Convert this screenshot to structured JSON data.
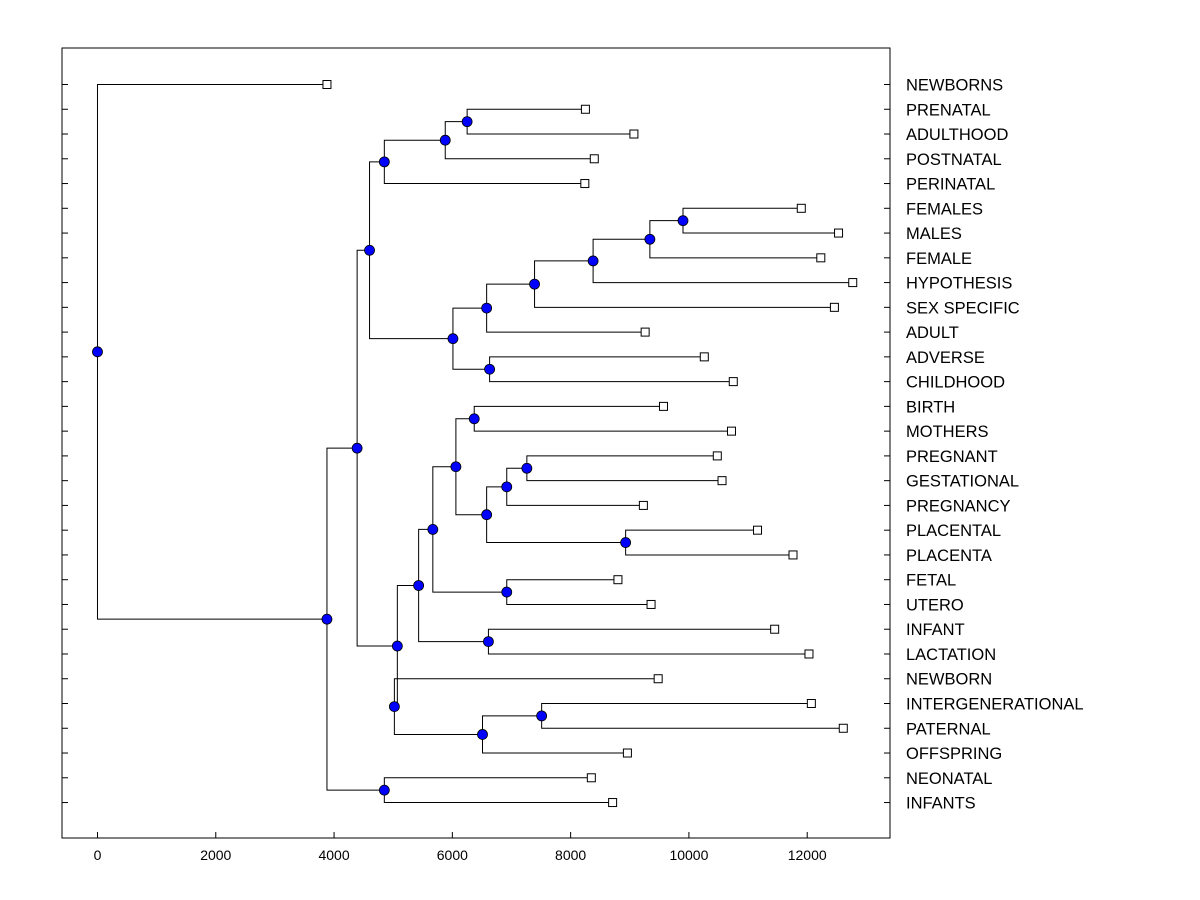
{
  "chart_data": {
    "type": "dendrogram",
    "title": "",
    "xlabel": "",
    "ylabel": "",
    "xlim": [
      -600,
      13400
    ],
    "xticks": [
      0,
      2000,
      4000,
      6000,
      8000,
      10000,
      12000
    ],
    "xtick_labels": [
      "0",
      "2000",
      "4000",
      "6000",
      "8000",
      "10000",
      "12000"
    ],
    "leaves": [
      {
        "id": "NEWBORNS",
        "label": "NEWBORNS",
        "x": 3880
      },
      {
        "id": "PRENATAL",
        "label": "PRENATAL",
        "x": 8250
      },
      {
        "id": "ADULTHOOD",
        "label": "ADULTHOOD",
        "x": 9070
      },
      {
        "id": "POSTNATAL",
        "label": "POSTNATAL",
        "x": 8400
      },
      {
        "id": "PERINATAL",
        "label": "PERINATAL",
        "x": 8240
      },
      {
        "id": "FEMALES",
        "label": "FEMALES",
        "x": 11900
      },
      {
        "id": "MALES",
        "label": "MALES",
        "x": 12530
      },
      {
        "id": "FEMALE",
        "label": "FEMALE",
        "x": 12230
      },
      {
        "id": "HYPOTHESIS",
        "label": "HYPOTHESIS",
        "x": 12770
      },
      {
        "id": "SEX_SPECIFIC",
        "label": "SEX SPECIFIC",
        "x": 12460
      },
      {
        "id": "ADULT",
        "label": "ADULT",
        "x": 9260
      },
      {
        "id": "ADVERSE",
        "label": "ADVERSE",
        "x": 10260
      },
      {
        "id": "CHILDHOOD",
        "label": "CHILDHOOD",
        "x": 10750
      },
      {
        "id": "BIRTH",
        "label": "BIRTH",
        "x": 9570
      },
      {
        "id": "MOTHERS",
        "label": "MOTHERS",
        "x": 10720
      },
      {
        "id": "PREGNANT",
        "label": "PREGNANT",
        "x": 10480
      },
      {
        "id": "GESTATIONAL",
        "label": "GESTATIONAL",
        "x": 10560
      },
      {
        "id": "PREGNANCY",
        "label": "PREGNANCY",
        "x": 9230
      },
      {
        "id": "PLACENTAL",
        "label": "PLACENTAL",
        "x": 11160
      },
      {
        "id": "PLACENTA",
        "label": "PLACENTA",
        "x": 11760
      },
      {
        "id": "FETAL",
        "label": "FETAL",
        "x": 8800
      },
      {
        "id": "UTERO",
        "label": "UTERO",
        "x": 9360
      },
      {
        "id": "INFANT",
        "label": "INFANT",
        "x": 11450
      },
      {
        "id": "LACTATION",
        "label": "LACTATION",
        "x": 12030
      },
      {
        "id": "NEWBORN",
        "label": "NEWBORN",
        "x": 9480
      },
      {
        "id": "INTERGENERATIONAL",
        "label": "INTERGENERATIONAL",
        "x": 12070
      },
      {
        "id": "PATERNAL",
        "label": "PATERNAL",
        "x": 12610
      },
      {
        "id": "OFFSPRING",
        "label": "OFFSPRING",
        "x": 8960
      },
      {
        "id": "NEONATAL",
        "label": "NEONATAL",
        "x": 8350
      },
      {
        "id": "INFANTS",
        "label": "INFANTS",
        "x": 8710
      }
    ],
    "merges": [
      {
        "id": "m01",
        "x": 6250,
        "children": [
          "PRENATAL",
          "ADULTHOOD"
        ]
      },
      {
        "id": "m02",
        "x": 5880,
        "children": [
          "m01",
          "POSTNATAL"
        ]
      },
      {
        "id": "m03",
        "x": 4850,
        "children": [
          "m02",
          "PERINATAL"
        ]
      },
      {
        "id": "m04",
        "x": 9900,
        "children": [
          "FEMALES",
          "MALES"
        ]
      },
      {
        "id": "m05",
        "x": 9340,
        "children": [
          "m04",
          "FEMALE"
        ]
      },
      {
        "id": "m06",
        "x": 8380,
        "children": [
          "m05",
          "HYPOTHESIS"
        ]
      },
      {
        "id": "m07",
        "x": 7390,
        "children": [
          "m06",
          "SEX_SPECIFIC"
        ]
      },
      {
        "id": "m08",
        "x": 6580,
        "children": [
          "m07",
          "ADULT"
        ]
      },
      {
        "id": "m09",
        "x": 6630,
        "children": [
          "ADVERSE",
          "CHILDHOOD"
        ]
      },
      {
        "id": "m10",
        "x": 6010,
        "children": [
          "m08",
          "m09"
        ]
      },
      {
        "id": "m11",
        "x": 4600,
        "children": [
          "m03",
          "m10"
        ]
      },
      {
        "id": "m12",
        "x": 6370,
        "children": [
          "BIRTH",
          "MOTHERS"
        ]
      },
      {
        "id": "m13",
        "x": 7260,
        "children": [
          "PREGNANT",
          "GESTATIONAL"
        ]
      },
      {
        "id": "m14",
        "x": 6920,
        "children": [
          "m13",
          "PREGNANCY"
        ]
      },
      {
        "id": "m15",
        "x": 8930,
        "children": [
          "PLACENTAL",
          "PLACENTA"
        ]
      },
      {
        "id": "m16",
        "x": 6580,
        "children": [
          "m14",
          "m15"
        ]
      },
      {
        "id": "m17",
        "x": 6060,
        "children": [
          "m12",
          "m16"
        ]
      },
      {
        "id": "m18",
        "x": 6920,
        "children": [
          "FETAL",
          "UTERO"
        ]
      },
      {
        "id": "m19",
        "x": 5670,
        "children": [
          "m17",
          "m18"
        ]
      },
      {
        "id": "m20",
        "x": 6610,
        "children": [
          "INFANT",
          "LACTATION"
        ]
      },
      {
        "id": "m21",
        "x": 5430,
        "children": [
          "m19",
          "m20"
        ]
      },
      {
        "id": "m22",
        "x": 7510,
        "children": [
          "INTERGENERATIONAL",
          "PATERNAL"
        ]
      },
      {
        "id": "m23",
        "x": 6510,
        "children": [
          "m22",
          "OFFSPRING"
        ]
      },
      {
        "id": "m24",
        "x": 5020,
        "children": [
          "NEWBORN",
          "m23"
        ]
      },
      {
        "id": "m25",
        "x": 5070,
        "children": [
          "m21",
          "m24"
        ]
      },
      {
        "id": "m26",
        "x": 4390,
        "children": [
          "m11",
          "m25"
        ]
      },
      {
        "id": "m27",
        "x": 4850,
        "children": [
          "NEONATAL",
          "INFANTS"
        ]
      },
      {
        "id": "m28",
        "x": 3880,
        "children": [
          "m26",
          "m27"
        ]
      },
      {
        "id": "root",
        "x": 0,
        "children": [
          "NEWBORNS",
          "m28"
        ]
      }
    ],
    "colors": {
      "node_fill": "#0000ff",
      "line": "#000000",
      "leaf_fill": "#ffffff"
    }
  }
}
